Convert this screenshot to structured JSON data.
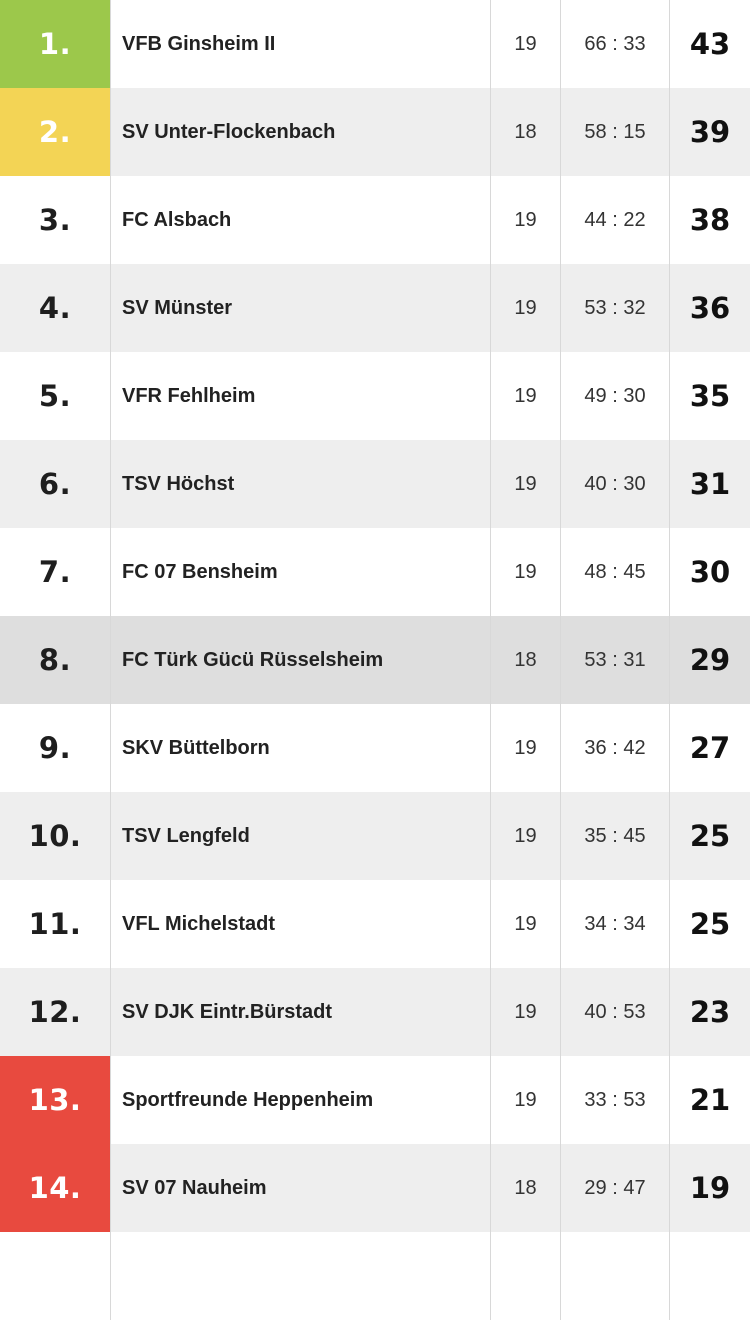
{
  "colors": {
    "promotion": "#9cc84b",
    "promotion_playoff": "#f3d455",
    "relegation": "#e84a3f",
    "row_white": "#ffffff",
    "row_grey": "#eeeeee",
    "row_highlight": "#dedede",
    "rank_text_dark": "#1e1e1e",
    "rank_text_light": "#ffffff"
  },
  "standings": [
    {
      "rank": "1.",
      "team": "VFB Ginsheim II",
      "games": "19",
      "goals": "66 : 33",
      "points": "43",
      "zone": "promotion"
    },
    {
      "rank": "2.",
      "team": "SV Unter-Flockenbach",
      "games": "18",
      "goals": "58 : 15",
      "points": "39",
      "zone": "promotion_playoff"
    },
    {
      "rank": "3.",
      "team": "FC Alsbach",
      "games": "19",
      "goals": "44 : 22",
      "points": "38",
      "zone": ""
    },
    {
      "rank": "4.",
      "team": "SV Münster",
      "games": "19",
      "goals": "53 : 32",
      "points": "36",
      "zone": ""
    },
    {
      "rank": "5.",
      "team": "VFR Fehlheim",
      "games": "19",
      "goals": "49 : 30",
      "points": "35",
      "zone": ""
    },
    {
      "rank": "6.",
      "team": "TSV Höchst",
      "games": "19",
      "goals": "40 : 30",
      "points": "31",
      "zone": ""
    },
    {
      "rank": "7.",
      "team": "FC 07 Bensheim",
      "games": "19",
      "goals": "48 : 45",
      "points": "30",
      "zone": ""
    },
    {
      "rank": "8.",
      "team": "FC Türk Gücü Rüsselsheim",
      "games": "18",
      "goals": "53 : 31",
      "points": "29",
      "zone": "",
      "highlighted": true
    },
    {
      "rank": "9.",
      "team": "SKV Büttelborn",
      "games": "19",
      "goals": "36 : 42",
      "points": "27",
      "zone": ""
    },
    {
      "rank": "10.",
      "team": "TSV Lengfeld",
      "games": "19",
      "goals": "35 : 45",
      "points": "25",
      "zone": ""
    },
    {
      "rank": "11.",
      "team": "VFL Michelstadt",
      "games": "19",
      "goals": "34 : 34",
      "points": "25",
      "zone": ""
    },
    {
      "rank": "12.",
      "team": "SV DJK Eintr.Bürstadt",
      "games": "19",
      "goals": "40 : 53",
      "points": "23",
      "zone": ""
    },
    {
      "rank": "13.",
      "team": "Sportfreunde Heppenheim",
      "games": "19",
      "goals": "33 : 53",
      "points": "21",
      "zone": "relegation"
    },
    {
      "rank": "14.",
      "team": "SV 07 Nauheim",
      "games": "18",
      "goals": "29 : 47",
      "points": "19",
      "zone": "relegation"
    },
    {
      "rank": "",
      "team": "",
      "games": "",
      "goals": "",
      "points": "",
      "zone": "",
      "partial": true
    }
  ]
}
